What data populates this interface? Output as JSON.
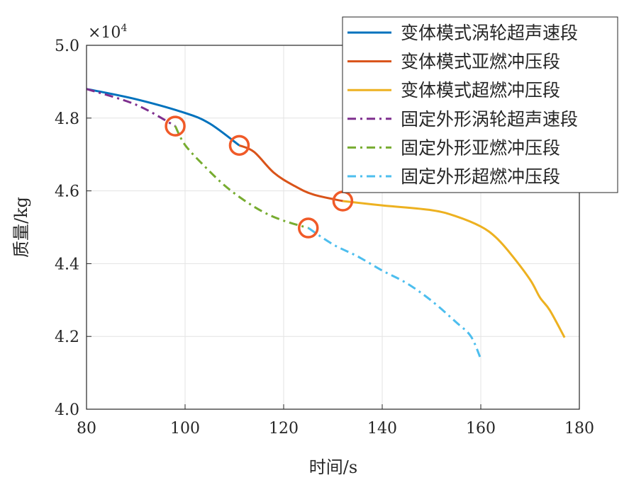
{
  "chart_data": {
    "type": "line",
    "title": "",
    "xlabel": "时间/s",
    "ylabel": "质量/kg",
    "y_exponent_label": "×10",
    "y_exponent_power": "4",
    "xlim": [
      80,
      180
    ],
    "ylim": [
      4.0,
      5.0
    ],
    "x_ticks": [
      80,
      100,
      120,
      140,
      160,
      180
    ],
    "x_tick_labels": [
      "80",
      "100",
      "120",
      "140",
      "160",
      "180"
    ],
    "y_ticks": [
      4.0,
      4.2,
      4.4,
      4.6,
      4.8,
      5.0
    ],
    "y_tick_labels": [
      "4.0",
      "4.2",
      "4.4",
      "4.6",
      "4.8",
      "5.0"
    ],
    "grid": true,
    "legend_position": "top-right",
    "series": [
      {
        "name": "变体模式涡轮超声速段",
        "color": "#0072BD",
        "dash": "solid",
        "x": [
          80,
          90,
          100,
          105,
          111
        ],
        "y": [
          4.88,
          4.852,
          4.814,
          4.785,
          4.725
        ]
      },
      {
        "name": "变体模式亚燃冲压段",
        "color": "#D95319",
        "dash": "solid",
        "x": [
          111,
          114,
          118,
          122,
          126,
          132
        ],
        "y": [
          4.725,
          4.707,
          4.65,
          4.615,
          4.59,
          4.572
        ]
      },
      {
        "name": "变体模式超燃冲压段",
        "color": "#EDB120",
        "dash": "solid",
        "x": [
          132,
          140,
          150,
          155,
          160,
          163,
          166,
          170,
          172,
          174,
          177
        ],
        "y": [
          4.572,
          4.56,
          4.547,
          4.53,
          4.502,
          4.473,
          4.428,
          4.356,
          4.307,
          4.272,
          4.197
        ]
      },
      {
        "name": "固定外形涡轮超声速段",
        "color": "#7E2F8E",
        "dash": "dashdot",
        "x": [
          80,
          90,
          98
        ],
        "y": [
          4.88,
          4.837,
          4.778
        ]
      },
      {
        "name": "固定外形亚燃冲压段",
        "color": "#77AC30",
        "dash": "dashdot",
        "x": [
          98,
          100,
          104,
          108,
          112,
          116,
          120,
          125
        ],
        "y": [
          4.778,
          4.726,
          4.667,
          4.615,
          4.574,
          4.541,
          4.518,
          4.498
        ]
      },
      {
        "name": "固定外形超燃冲压段",
        "color": "#4DBEEE",
        "dash": "dashdot",
        "x": [
          125,
          130,
          135,
          140,
          145,
          150,
          155,
          158,
          160
        ],
        "y": [
          4.498,
          4.453,
          4.42,
          4.381,
          4.346,
          4.298,
          4.239,
          4.2,
          4.138
        ]
      }
    ],
    "markers": {
      "color": "#F05A28",
      "points": [
        {
          "x": 98,
          "y": 4.778
        },
        {
          "x": 111,
          "y": 4.725
        },
        {
          "x": 125,
          "y": 4.498
        },
        {
          "x": 132,
          "y": 4.572
        }
      ]
    }
  }
}
